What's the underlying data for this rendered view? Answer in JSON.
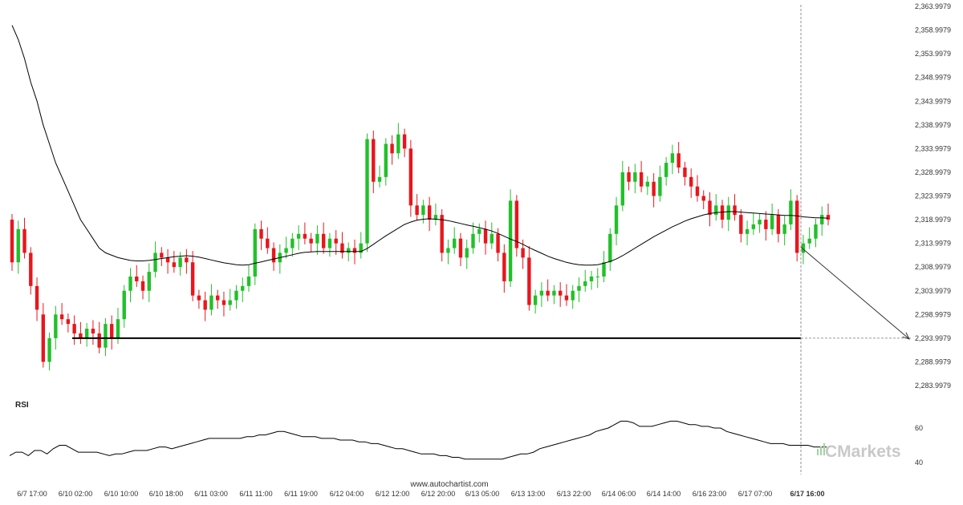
{
  "watermark": "www.autochartist.com",
  "brand": "CMarkets",
  "colors": {
    "up": "#22c02a",
    "down": "#e8161c",
    "ma": "#000000",
    "level": "#000000",
    "rsi": "#000000"
  },
  "chart_data": [
    {
      "type": "candlestick",
      "title": "",
      "y_ticks": [
        "2,283.9979",
        "2,288.9979",
        "2,293.9979",
        "2,298.9979",
        "2,303.9979",
        "2,308.9979",
        "2,313.9979",
        "2,318.9979",
        "2,323.9979",
        "2,328.9979",
        "2,333.9979",
        "2,338.9979",
        "2,343.9979",
        "2,348.9979",
        "2,353.9979",
        "2,358.9979",
        "2,363.9979"
      ],
      "ylim": [
        2283.9979,
        2363.9979
      ],
      "x_ticks": [
        "6/7 17:00",
        "6/10 02:00",
        "6/10 10:00",
        "6/10 18:00",
        "6/11 03:00",
        "6/11 11:00",
        "6/11 19:00",
        "6/12 04:00",
        "6/12 12:00",
        "6/12 20:00",
        "6/13 05:00",
        "6/13 13:00",
        "6/13 22:00",
        "6/14 06:00",
        "6/14 14:00",
        "6/16 23:00",
        "6/17 07:00",
        "6/17 16:00"
      ],
      "highlighted_x_tick": "6/17 16:00",
      "series": [
        {
          "close": [
            2310,
            2317,
            2312,
            2305,
            2300,
            2289,
            2294,
            2299,
            2298,
            2297,
            2295,
            2294,
            2296,
            2295,
            2292,
            2297,
            2294,
            2298,
            2304,
            2307,
            2306,
            2304,
            2308,
            2312,
            2311,
            2310,
            2309,
            2311,
            2310,
            2303,
            2302,
            2300,
            2303,
            2302,
            2301,
            2302,
            2304,
            2305,
            2307,
            2317,
            2315,
            2313,
            2310,
            2312,
            2313,
            2315,
            2316,
            2315,
            2314,
            2316,
            2313,
            2315,
            2314,
            2312,
            2313,
            2312,
            2314,
            2336,
            2327,
            2328,
            2335,
            2333,
            2337,
            2334,
            2322,
            2320,
            2322,
            2319,
            2320,
            2312,
            2313,
            2315,
            2311,
            2313,
            2316,
            2317,
            2314,
            2316,
            2312,
            2306,
            2323,
            2313,
            2311,
            2301,
            2303,
            2304,
            2303,
            2304,
            2303,
            2302,
            2304,
            2305,
            2306,
            2307,
            2307,
            2310,
            2316,
            2322,
            2329,
            2327,
            2329,
            2326,
            2327,
            2324,
            2328,
            2331,
            2333,
            2330,
            2328,
            2326,
            2324,
            2323,
            2320,
            2322,
            2319,
            2322,
            2320,
            2316,
            2317,
            2318,
            2319,
            2317,
            2320,
            2316,
            2318,
            2323,
            2312,
            2314,
            2315,
            2318,
            2320,
            2319
          ],
          "open": [
            2319,
            2310,
            2317,
            2312,
            2305,
            2299,
            2289,
            2294,
            2299,
            2298,
            2297,
            2295,
            2294,
            2296,
            2295,
            2292,
            2297,
            2294,
            2298,
            2304,
            2307,
            2306,
            2304,
            2308,
            2312,
            2311,
            2310,
            2309,
            2311,
            2310,
            2303,
            2302,
            2300,
            2303,
            2302,
            2301,
            2302,
            2304,
            2305,
            2307,
            2317,
            2315,
            2313,
            2310,
            2312,
            2313,
            2315,
            2316,
            2315,
            2314,
            2316,
            2313,
            2315,
            2314,
            2312,
            2313,
            2312,
            2314,
            2336,
            2327,
            2328,
            2335,
            2333,
            2337,
            2334,
            2322,
            2320,
            2322,
            2319,
            2320,
            2312,
            2313,
            2315,
            2311,
            2313,
            2316,
            2317,
            2314,
            2316,
            2312,
            2306,
            2323,
            2313,
            2311,
            2301,
            2303,
            2304,
            2303,
            2304,
            2303,
            2302,
            2304,
            2305,
            2306,
            2307,
            2307,
            2310,
            2316,
            2322,
            2329,
            2327,
            2329,
            2326,
            2327,
            2324,
            2328,
            2331,
            2333,
            2330,
            2328,
            2326,
            2324,
            2323,
            2320,
            2322,
            2319,
            2322,
            2320,
            2316,
            2317,
            2318,
            2319,
            2317,
            2320,
            2316,
            2318,
            2323,
            2312,
            2314,
            2315,
            2318,
            2320
          ],
          "ma": [
            2360,
            2357,
            2353,
            2348,
            2344,
            2339,
            2335,
            2331,
            2328,
            2325,
            2322,
            2319,
            2317,
            2315,
            2313,
            2312,
            2311.5,
            2311,
            2310.7,
            2310.4,
            2310.3,
            2310.3,
            2310.4,
            2310.6,
            2310.8,
            2311,
            2311.2,
            2311.3,
            2311.4,
            2311.3,
            2311.1,
            2310.8,
            2310.5,
            2310.2,
            2309.9,
            2309.7,
            2309.5,
            2309.4,
            2309.5,
            2309.8,
            2310.1,
            2310.4,
            2310.7,
            2311,
            2311.3,
            2311.6,
            2311.9,
            2312.1,
            2312.2,
            2312.3,
            2312.3,
            2312.3,
            2312.3,
            2312.3,
            2312.3,
            2312.3,
            2312.3,
            2312.9,
            2313.8,
            2314.7,
            2315.6,
            2316.4,
            2317.2,
            2318,
            2318.5,
            2318.9,
            2319.1,
            2319.2,
            2319.1,
            2319,
            2318.8,
            2318.5,
            2318.2,
            2317.9,
            2317.6,
            2317.3,
            2317,
            2316.6,
            2316.1,
            2315.5,
            2314.9,
            2314.4,
            2313.8,
            2313.1,
            2312.5,
            2311.9,
            2311.3,
            2310.8,
            2310.4,
            2310,
            2309.7,
            2309.5,
            2309.4,
            2309.4,
            2309.5,
            2309.8,
            2310.2,
            2310.7,
            2311.4,
            2312.2,
            2313,
            2313.8,
            2314.6,
            2315.4,
            2316.1,
            2316.8,
            2317.5,
            2318.1,
            2318.7,
            2319.2,
            2319.6,
            2320,
            2320.3,
            2320.5,
            2320.6,
            2320.7,
            2320.7,
            2320.6,
            2320.5,
            2320.4,
            2320.3,
            2320.2,
            2320.1,
            2320,
            2319.9,
            2319.9,
            2319.8,
            2319.6,
            2319.5,
            2319.4,
            2319.4,
            2319.3
          ]
        }
      ],
      "support_level": 2293.9979,
      "projection_target": 2293.9979
    },
    {
      "type": "line",
      "label": "RSI",
      "y_ticks": [
        "60",
        "40"
      ],
      "ylim": [
        35,
        70
      ],
      "values": [
        44,
        46,
        46,
        44,
        47,
        47,
        45,
        48,
        50,
        50,
        48,
        46,
        46,
        46,
        46,
        45,
        44,
        45,
        45,
        46,
        47,
        47,
        47,
        48,
        49,
        49,
        48,
        49,
        50,
        51,
        52,
        53,
        54,
        54,
        54,
        54,
        54,
        54,
        55,
        55,
        56,
        56,
        57,
        58,
        58,
        57,
        56,
        55,
        55,
        55,
        54,
        54,
        54,
        53,
        53,
        53,
        52,
        52,
        51,
        51,
        50,
        49,
        48,
        48,
        47,
        46,
        45,
        45,
        45,
        44,
        44,
        43,
        43,
        42,
        42,
        42,
        42,
        42,
        42,
        42,
        43,
        44,
        45,
        45,
        46,
        48,
        49,
        50,
        51,
        52,
        53,
        54,
        55,
        56,
        58,
        59,
        60,
        62,
        64,
        64,
        63,
        61,
        61,
        61,
        62,
        63,
        64,
        64,
        63,
        62,
        62,
        61,
        61,
        60,
        60,
        58,
        57,
        56,
        55,
        54,
        53,
        52,
        51,
        51,
        51,
        50,
        50,
        50,
        50,
        49,
        49,
        49
      ]
    }
  ]
}
